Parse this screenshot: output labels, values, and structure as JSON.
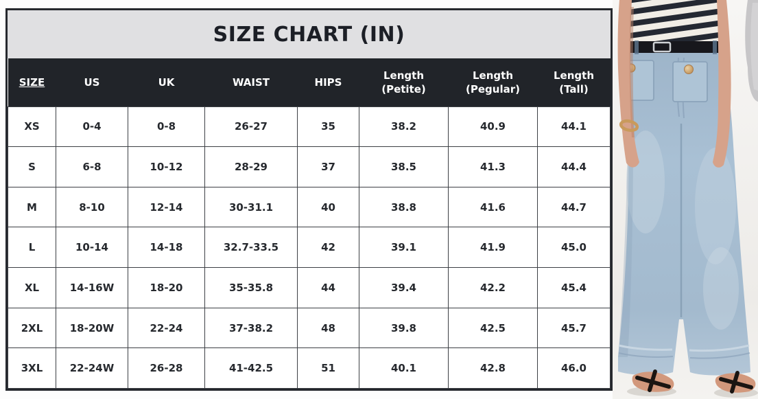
{
  "chart_data": {
    "type": "table",
    "title": "SIZE CHART (IN)",
    "columns": [
      "SIZE",
      "US",
      "UK",
      "WAIST",
      "HIPS",
      "Length (Petite)",
      "Length (Pegular)",
      "Length (Tall)"
    ],
    "rows": [
      [
        "XS",
        "0-4",
        "0-8",
        "26-27",
        "35",
        "38.2",
        "40.9",
        "44.1"
      ],
      [
        "S",
        "6-8",
        "10-12",
        "28-29",
        "37",
        "38.5",
        "41.3",
        "44.4"
      ],
      [
        "M",
        "8-10",
        "12-14",
        "30-31.1",
        "40",
        "38.8",
        "41.6",
        "44.7"
      ],
      [
        "L",
        "10-14",
        "14-18",
        "32.7-33.5",
        "42",
        "39.1",
        "41.9",
        "45.0"
      ],
      [
        "XL",
        "14-16W",
        "18-20",
        "35-35.8",
        "44",
        "39.4",
        "42.2",
        "45.4"
      ],
      [
        "2XL",
        "18-20W",
        "22-24",
        "37-38.2",
        "48",
        "39.8",
        "42.5",
        "45.7"
      ],
      [
        "3XL",
        "22-24W",
        "26-28",
        "41-42.5",
        "51",
        "40.1",
        "42.8",
        "46.0"
      ]
    ],
    "units": "inches",
    "layout": "title band over dark header row, 7 white data rows, grid on"
  },
  "photo": {
    "description": "model in striped tee and light-wash wide-leg jeans with gold-button patch pockets, black belt, black strappy heeled sandals; second person in gray sweater at top right",
    "colors": {
      "denim": "#a3bace",
      "denim_light": "#c4d3e0",
      "denim_shadow": "#7e97ae",
      "stripe_dark": "#242832",
      "stripe_light": "#f1ede6",
      "skin": "#d6a28a",
      "belt": "#17171c",
      "button_gold": "#d8b07c",
      "sandal": "#1a1512",
      "backdrop": "#f3f1ee"
    }
  },
  "colors": {
    "title_bg": "#e0e0e2",
    "title_text": "#1c1f26",
    "header_bg": "#212429",
    "header_text": "#ffffff",
    "cell_text": "#26292e",
    "grid_border": "#3c3f44",
    "outer_border": "#26292e"
  }
}
